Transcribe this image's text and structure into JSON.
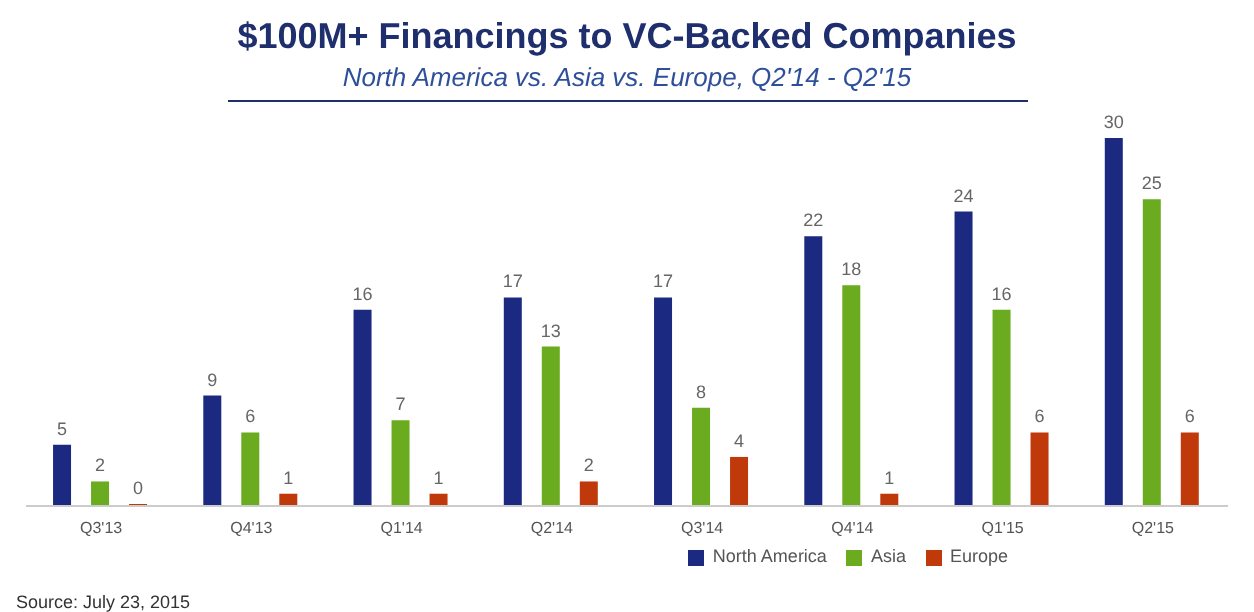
{
  "chart_data": {
    "type": "bar",
    "title": "$100M+ Financings to VC-Backed Companies",
    "subtitle": "North America vs. Asia vs. Europe, Q2'14 - Q2'15",
    "categories": [
      "Q3'13",
      "Q4'13",
      "Q1'14",
      "Q2'14",
      "Q3'14",
      "Q4'14",
      "Q1'15",
      "Q2'15"
    ],
    "series": [
      {
        "name": "North America",
        "color": "#1b2a80",
        "values": [
          5,
          9,
          16,
          17,
          17,
          22,
          24,
          30
        ]
      },
      {
        "name": "Asia",
        "color": "#6aab1f",
        "values": [
          2,
          6,
          7,
          13,
          8,
          18,
          16,
          25
        ]
      },
      {
        "name": "Europe",
        "color": "#c0390b",
        "values": [
          0,
          1,
          1,
          2,
          4,
          1,
          6,
          6
        ]
      }
    ],
    "data_labels": true,
    "legend": "bottom right",
    "annotations": [
      "Source: July 23, 2015"
    ]
  }
}
